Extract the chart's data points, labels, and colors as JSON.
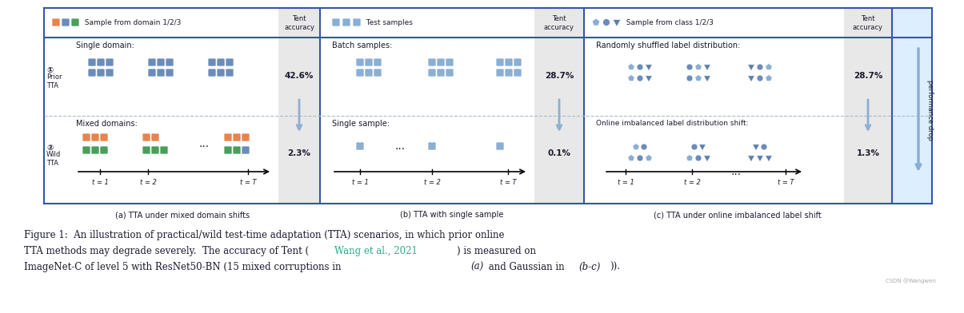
{
  "fig_width": 12.05,
  "fig_height": 3.92,
  "dpi": 100,
  "bg_color": "#ffffff",
  "blue_color": "#6b8cba",
  "blue_light": "#8aafd4",
  "blue_med": "#5b7faa",
  "orange_color": "#e8834e",
  "green_color": "#4a9e5c",
  "teal_color": "#2aaa8a",
  "text_color": "#1a1a2e",
  "gray_bg": "#e8e8e8",
  "panel_a_caption": "(a) TTA under mixed domain shifts",
  "panel_b_caption": "(b) TTA with single sample",
  "panel_c_caption": "(c) TTA under online imbalanced label shift",
  "tent_accuracy": "Tent\naccuracy",
  "perf_drop": "performance drop",
  "acc_a_prior": "42.6%",
  "acc_a_wild": "2.3%",
  "acc_b_prior": "28.7%",
  "acc_b_wild": "0.1%",
  "acc_c_prior": "28.7%",
  "acc_c_wild": "1.3%",
  "single_domain_text": "Single domain:",
  "mixed_domains_text": "Mixed domains:",
  "batch_samples_text": "Batch samples:",
  "single_sample_text": "Single sample:",
  "randomly_shuffled_text": "Randomly shuffled label distribution:",
  "online_imbalanced_text": "Online imbalanced label distribution shift:",
  "caption_line1": "Figure 1:  An illustration of practical/wild test-time adaptation (TTA) scenarios, in which prior online",
  "caption_line2a": "TTA methods may degrade severely.  The accuracy of Tent (",
  "caption_link": "Wang et al., 2021",
  "caption_line2b": ") is measured on",
  "caption_line3a": "ImageNet-C of level 5 with ResNet50-BN (15 mixed corruptions in ",
  "caption_italic_a": "(a)",
  "caption_line3b": " and Gaussian in ",
  "caption_italic_bc": "(b-c)",
  "caption_line3c": ")).",
  "watermark": "CSDN @Wangwen"
}
